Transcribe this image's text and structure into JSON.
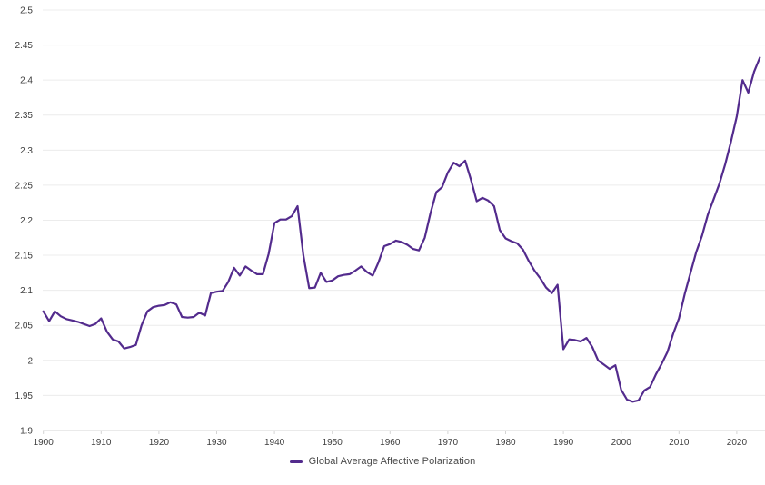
{
  "chart_data": {
    "type": "line",
    "title": "",
    "xlabel": "",
    "ylabel": "",
    "xlim": [
      1900,
      2025
    ],
    "ylim": [
      1.9,
      2.5
    ],
    "grid": true,
    "legend_position": "bottom-center",
    "x_start": 1900,
    "x_step": 1,
    "x_end": 2024,
    "y_ticks": [
      {
        "v": 2.5,
        "label": "2.5"
      },
      {
        "v": 2.45,
        "label": "2.45"
      },
      {
        "v": 2.4,
        "label": "2.4"
      },
      {
        "v": 2.35,
        "label": "2.35"
      },
      {
        "v": 2.3,
        "label": "2.3"
      },
      {
        "v": 2.25,
        "label": "2.25"
      },
      {
        "v": 2.2,
        "label": "2.2"
      },
      {
        "v": 2.15,
        "label": "2.15"
      },
      {
        "v": 2.1,
        "label": "2.1"
      },
      {
        "v": 2.05,
        "label": "2.05"
      },
      {
        "v": 2.0,
        "label": "2"
      },
      {
        "v": 1.95,
        "label": "1.95"
      },
      {
        "v": 1.9,
        "label": "1.9"
      }
    ],
    "x_ticks": [
      {
        "v": 1900,
        "label": "1900"
      },
      {
        "v": 1910,
        "label": "1910"
      },
      {
        "v": 1920,
        "label": "1920"
      },
      {
        "v": 1930,
        "label": "1930"
      },
      {
        "v": 1940,
        "label": "1940"
      },
      {
        "v": 1950,
        "label": "1950"
      },
      {
        "v": 1960,
        "label": "1960"
      },
      {
        "v": 1970,
        "label": "1970"
      },
      {
        "v": 1980,
        "label": "1980"
      },
      {
        "v": 1990,
        "label": "1990"
      },
      {
        "v": 2000,
        "label": "2000"
      },
      {
        "v": 2010,
        "label": "2010"
      },
      {
        "v": 2020,
        "label": "2020"
      }
    ],
    "series": [
      {
        "name": "Global Average Affective Polarization",
        "color": "#532b8d",
        "values": [
          2.07,
          2.056,
          2.07,
          2.063,
          2.059,
          2.057,
          2.055,
          2.052,
          2.049,
          2.052,
          2.06,
          2.041,
          2.03,
          2.027,
          2.017,
          2.019,
          2.022,
          2.05,
          2.07,
          2.076,
          2.078,
          2.079,
          2.083,
          2.08,
          2.062,
          2.061,
          2.062,
          2.068,
          2.064,
          2.096,
          2.098,
          2.099,
          2.112,
          2.132,
          2.121,
          2.134,
          2.128,
          2.123,
          2.123,
          2.152,
          2.196,
          2.201,
          2.201,
          2.206,
          2.22,
          2.15,
          2.103,
          2.104,
          2.125,
          2.112,
          2.114,
          2.12,
          2.122,
          2.123,
          2.128,
          2.134,
          2.126,
          2.121,
          2.14,
          2.163,
          2.166,
          2.171,
          2.169,
          2.165,
          2.159,
          2.157,
          2.175,
          2.21,
          2.24,
          2.247,
          2.268,
          2.282,
          2.277,
          2.285,
          2.258,
          2.227,
          2.232,
          2.228,
          2.22,
          2.186,
          2.174,
          2.17,
          2.167,
          2.158,
          2.142,
          2.128,
          2.117,
          2.104,
          2.096,
          2.108,
          2.016,
          2.03,
          2.029,
          2.027,
          2.032,
          2.019,
          2.0,
          1.994,
          1.988,
          1.993,
          1.958,
          1.944,
          1.941,
          1.943,
          1.957,
          1.962,
          1.98,
          1.995,
          2.012,
          2.038,
          2.06,
          2.095,
          2.125,
          2.155,
          2.178,
          2.208,
          2.23,
          2.252,
          2.28,
          2.312,
          2.348,
          2.4,
          2.382,
          2.412,
          2.432
        ]
      }
    ]
  },
  "legend": {
    "label": "Global Average Affective Polarization"
  },
  "colors": {
    "line": "#532b8d",
    "grid": "#ececec",
    "axis_line": "#d4d4d4",
    "tick_mark": "#d4d4d4",
    "tick_text": "#3d3d3d",
    "legend_text": "#4a4a4a",
    "background": "#ffffff"
  }
}
